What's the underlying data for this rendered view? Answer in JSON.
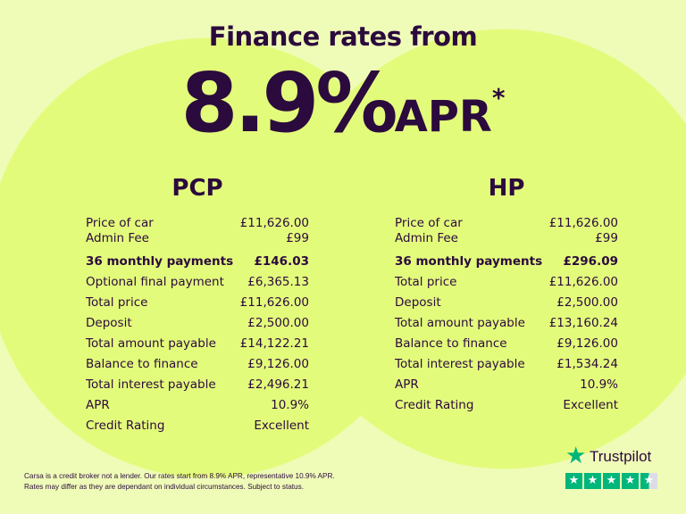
{
  "colors": {
    "background": "#effcb8",
    "circle": "#e3fb7b",
    "text": "#2b0a3d",
    "trustpilot": "#00b67a"
  },
  "header": {
    "headline": "Finance rates from",
    "rate": "8.9%",
    "apr": "APR",
    "asterisk": "*"
  },
  "pcp": {
    "title": "PCP",
    "rows": [
      {
        "label": "Price of car",
        "value": "£11,626.00"
      },
      {
        "label": "Admin Fee",
        "value": "£99"
      },
      {
        "label": "36 monthly payments",
        "value": "£146.03",
        "bold": true
      },
      {
        "label": "Optional final payment",
        "value": "£6,365.13"
      },
      {
        "label": "Total price",
        "value": "£11,626.00"
      },
      {
        "label": "Deposit",
        "value": "£2,500.00"
      },
      {
        "label": "Total amount payable",
        "value": "£14,122.21"
      },
      {
        "label": "Balance to finance",
        "value": "£9,126.00"
      },
      {
        "label": "Total interest payable",
        "value": "£2,496.21"
      },
      {
        "label": "APR",
        "value": "10.9%"
      },
      {
        "label": "Credit Rating",
        "value": "Excellent"
      }
    ]
  },
  "hp": {
    "title": "HP",
    "rows": [
      {
        "label": "Price of car",
        "value": "£11,626.00"
      },
      {
        "label": "Admin Fee",
        "value": "£99"
      },
      {
        "label": "36 monthly payments",
        "value": "£296.09",
        "bold": true
      },
      {
        "label": "Total price",
        "value": "£11,626.00"
      },
      {
        "label": "Deposit",
        "value": "£2,500.00"
      },
      {
        "label": "Total amount payable",
        "value": "£13,160.24"
      },
      {
        "label": "Balance to finance",
        "value": "£9,126.00"
      },
      {
        "label": "Total interest payable",
        "value": "£1,534.24"
      },
      {
        "label": "APR",
        "value": "10.9%"
      },
      {
        "label": "Credit Rating",
        "value": "Excellent"
      }
    ]
  },
  "disclaimer": {
    "line1": "Carsa is a credit broker not a lender. Our rates start from 8.9% APR, representative 10.9% APR.",
    "line2": "Rates may differ as they are dependant on individual circumstances. Subject to status."
  },
  "trustpilot": {
    "name": "Trustpilot",
    "rating_stars": 4.5,
    "max_stars": 5,
    "logo_icon": "star-icon"
  }
}
